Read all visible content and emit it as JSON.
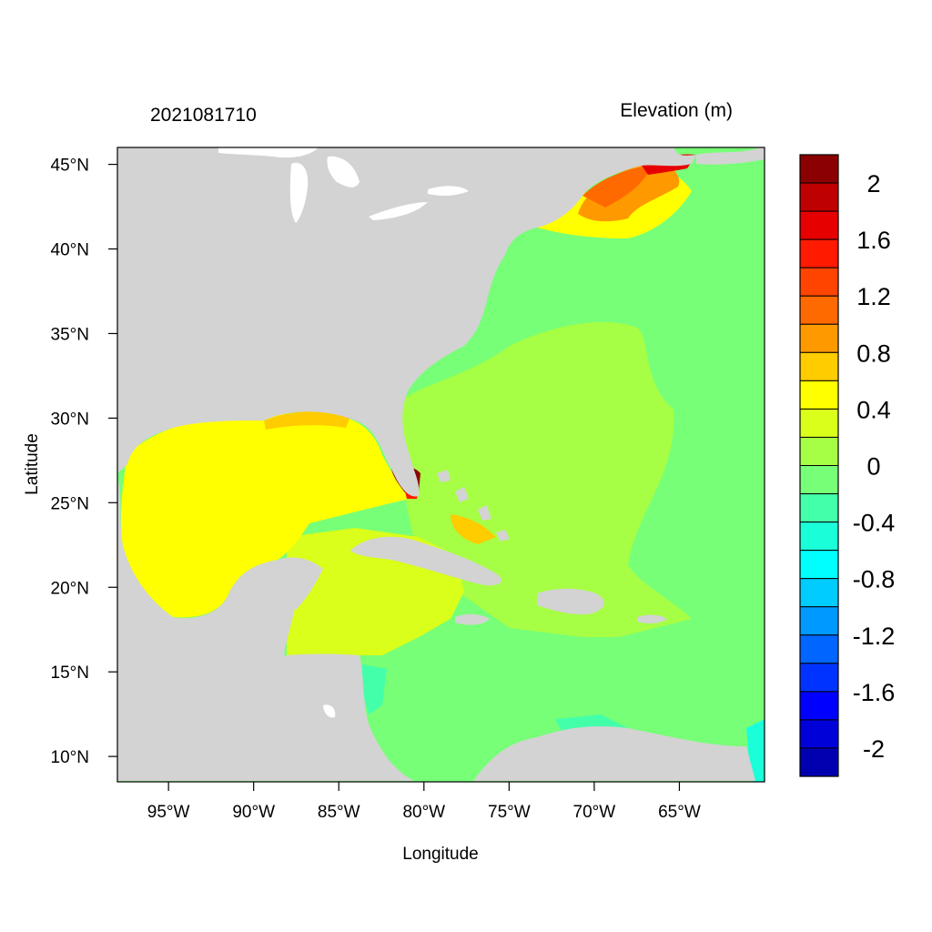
{
  "header": {
    "left_label": "2021081710",
    "right_label": "Elevation (m)"
  },
  "axes": {
    "xlabel": "Longitude",
    "ylabel": "Latitude",
    "xlim": [
      -98,
      -60
    ],
    "ylim": [
      8.5,
      46
    ],
    "xticks": [
      {
        "value": -95,
        "label": "95°W"
      },
      {
        "value": -90,
        "label": "90°W"
      },
      {
        "value": -85,
        "label": "85°W"
      },
      {
        "value": -80,
        "label": "80°W"
      },
      {
        "value": -75,
        "label": "75°W"
      },
      {
        "value": -70,
        "label": "70°W"
      },
      {
        "value": -65,
        "label": "65°W"
      }
    ],
    "yticks": [
      {
        "value": 45,
        "label": "45°N"
      },
      {
        "value": 40,
        "label": "40°N"
      },
      {
        "value": 35,
        "label": "35°N"
      },
      {
        "value": 30,
        "label": "30°N"
      },
      {
        "value": 25,
        "label": "25°N"
      },
      {
        "value": 20,
        "label": "20°N"
      },
      {
        "value": 15,
        "label": "15°N"
      },
      {
        "value": 10,
        "label": "10°N"
      }
    ]
  },
  "colorbar": {
    "colors_top_to_bottom": [
      "#8b0000",
      "#bf0000",
      "#e60000",
      "#ff1a00",
      "#ff4400",
      "#ff6a00",
      "#ff9900",
      "#ffcc00",
      "#ffff00",
      "#d9ff1a",
      "#a6ff44",
      "#77ff77",
      "#44ffaa",
      "#1affd9",
      "#00ffff",
      "#00ccff",
      "#0099ff",
      "#0066ff",
      "#0033ff",
      "#0000ff",
      "#0000d9",
      "#0000b0"
    ],
    "labels": [
      "2",
      "1.6",
      "1.2",
      "0.8",
      "0.4",
      "0",
      "-0.4",
      "-0.8",
      "-1.2",
      "-1.6",
      "-2"
    ]
  },
  "map": {
    "land_color": "#d3d3d3",
    "ocean_background_color": "#77ff77",
    "water_body_color": "#ffffff",
    "regions": [
      {
        "name": "gulf-of-mexico",
        "value": 0.45,
        "color": "#ffff00"
      },
      {
        "name": "caribbean-sea",
        "value": 0.3,
        "color": "#d9ff1a"
      },
      {
        "name": "south-caribbean",
        "value": 0.1,
        "color": "#a6ff44"
      },
      {
        "name": "western-atlantic",
        "value": 0.1,
        "color": "#a6ff44"
      },
      {
        "name": "open-atlantic",
        "value": -0.1,
        "color": "#77ff77"
      },
      {
        "name": "gulf-of-maine",
        "value": 1.0,
        "color": "#ff9900"
      },
      {
        "name": "south-florida",
        "value": 2.2,
        "color": "#8b0000"
      }
    ]
  }
}
